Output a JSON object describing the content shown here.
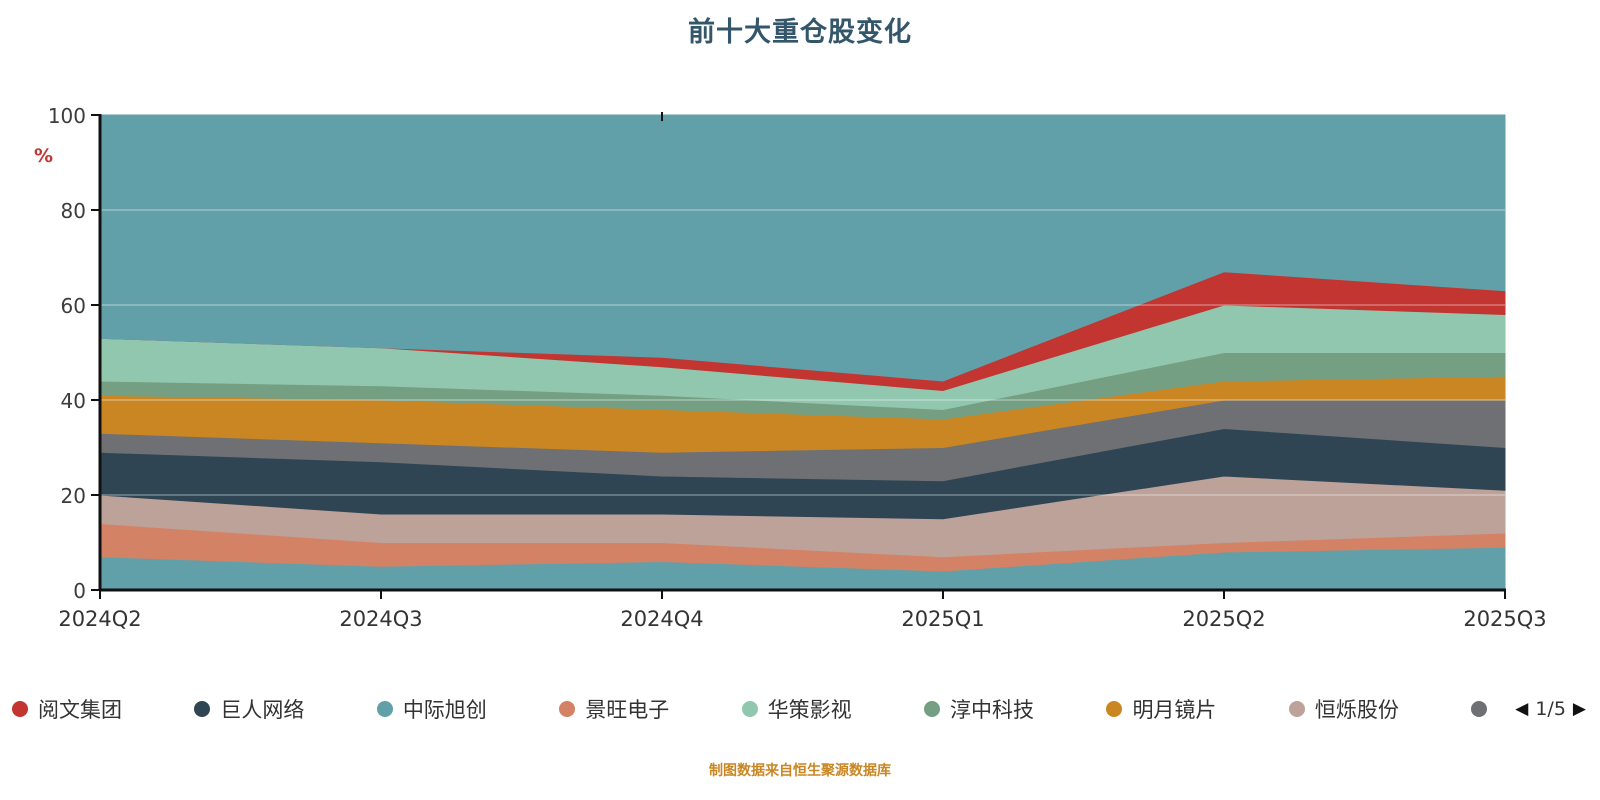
{
  "title": "前十大重仓股变化",
  "footer": "制图数据来自恒生聚源数据库",
  "y_axis": {
    "unit": "%",
    "ticks": [
      0,
      20,
      40,
      60,
      80,
      100
    ]
  },
  "legend": {
    "items": [
      {
        "label": "阅文集团",
        "color": "#c23531"
      },
      {
        "label": "巨人网络",
        "color": "#2f4554"
      },
      {
        "label": "中际旭创",
        "color": "#61a0a8"
      },
      {
        "label": "景旺电子",
        "color": "#d48265"
      },
      {
        "label": "华策影视",
        "color": "#91c7ae"
      },
      {
        "label": "淳中科技",
        "color": "#749f83"
      },
      {
        "label": "明月镜片",
        "color": "#ca8622"
      },
      {
        "label": "恒烁股份",
        "color": "#bda29a"
      },
      {
        "label": "",
        "color": "#6e7074"
      }
    ],
    "pagination": {
      "prev": "◀",
      "current": "1/5",
      "next": "▶"
    }
  },
  "chart_data": {
    "type": "area",
    "stacked": true,
    "title": "前十大重仓股变化",
    "ylabel": "%",
    "ylim": [
      0,
      100
    ],
    "grid": "horizontal-light",
    "legend_position": "bottom",
    "categories": [
      "2024Q2",
      "2024Q3",
      "2024Q4",
      "2025Q1",
      "2025Q2",
      "2025Q3"
    ],
    "series": [
      {
        "name": "中际旭创",
        "color": "#61a0a8",
        "values": [
          7,
          5,
          6,
          4,
          8,
          9
        ]
      },
      {
        "name": "景旺电子",
        "color": "#d48265",
        "values": [
          7,
          5,
          4,
          3,
          2,
          3
        ]
      },
      {
        "name": "恒烁股份",
        "color": "#bda29a",
        "values": [
          6,
          6,
          6,
          8,
          14,
          9
        ]
      },
      {
        "name": "巨人网络",
        "color": "#2f4554",
        "values": [
          9,
          11,
          8,
          8,
          10,
          9
        ]
      },
      {
        "name": "",
        "color": "#6e7074",
        "values": [
          4,
          4,
          5,
          7,
          6,
          10
        ]
      },
      {
        "name": "明月镜片",
        "color": "#ca8622",
        "values": [
          8,
          9,
          9,
          6,
          4,
          5
        ]
      },
      {
        "name": "淳中科技",
        "color": "#749f83",
        "values": [
          3,
          3,
          3,
          2,
          6,
          5
        ]
      },
      {
        "name": "华策影视",
        "color": "#91c7ae",
        "values": [
          9,
          8,
          6,
          4,
          10,
          8
        ]
      },
      {
        "name": "阅文集团",
        "color": "#c23531",
        "values": [
          0,
          0,
          2,
          2,
          7,
          5
        ]
      }
    ],
    "remainder": {
      "color": "#61a0a8"
    }
  }
}
